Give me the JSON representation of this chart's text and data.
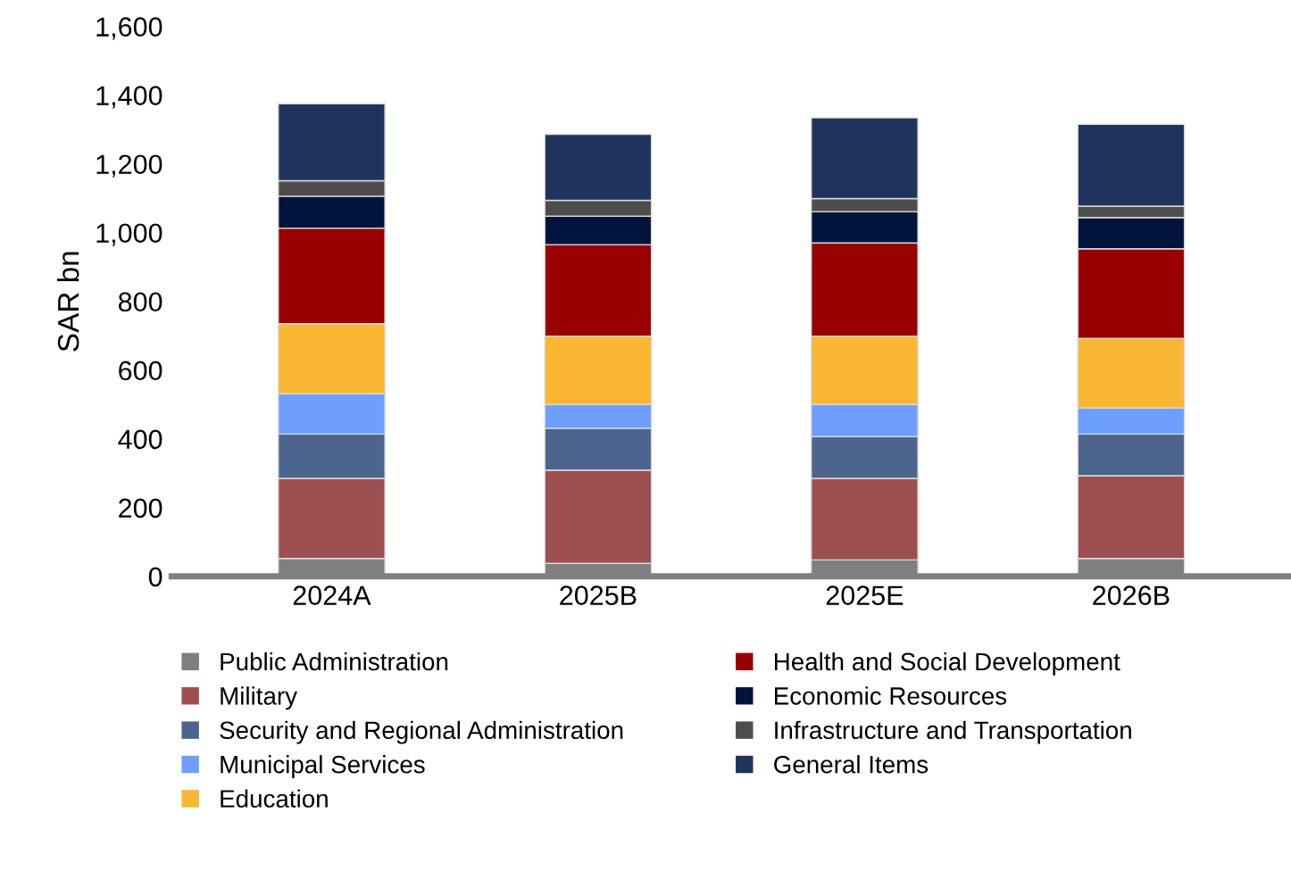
{
  "chart_data": {
    "type": "bar",
    "stacked": true,
    "ylabel": "SAR bn",
    "categories": [
      "2024A",
      "2025B",
      "2025E",
      "2026B"
    ],
    "ylim": [
      0,
      1600
    ],
    "yticks": [
      0,
      {
        "value": 200,
        "label": "200"
      },
      {
        "value": 400,
        "label": "400"
      },
      {
        "value": 600,
        "label": "600"
      },
      {
        "value": 800,
        "label": "800"
      },
      {
        "value": 1000,
        "label": "1,000"
      },
      {
        "value": 1200,
        "label": "1,200"
      },
      {
        "value": 1400,
        "label": "1,400"
      },
      {
        "value": 1600,
        "label": "1,600"
      }
    ],
    "grid": false,
    "legend": "bottom",
    "series": [
      {
        "name": "Public Administration",
        "color": "#7f7f7f",
        "values": [
          52,
          38,
          48,
          52
        ]
      },
      {
        "name": "Military",
        "color": "#9e4f4f",
        "values": [
          233,
          271,
          237,
          241
        ]
      },
      {
        "name": "Security and Regional Administration",
        "color": "#4d648e",
        "values": [
          129,
          122,
          122,
          121
        ]
      },
      {
        "name": "Municipal Services",
        "color": "#6e9fff",
        "values": [
          117,
          69,
          93,
          76
        ]
      },
      {
        "name": "Education",
        "color": "#f9b733",
        "values": [
          204,
          199,
          199,
          202
        ]
      },
      {
        "name": "Health and Social Development",
        "color": "#990000",
        "values": [
          278,
          266,
          271,
          261
        ]
      },
      {
        "name": "Economic Resources",
        "color": "#00143c",
        "values": [
          93,
          83,
          91,
          91
        ]
      },
      {
        "name": "Infrastructure and Transportation",
        "color": "#4d4d4d",
        "values": [
          45,
          46,
          38,
          33
        ]
      },
      {
        "name": "General Items",
        "color": "#1e345c",
        "values": [
          224,
          192,
          235,
          238
        ]
      }
    ]
  }
}
